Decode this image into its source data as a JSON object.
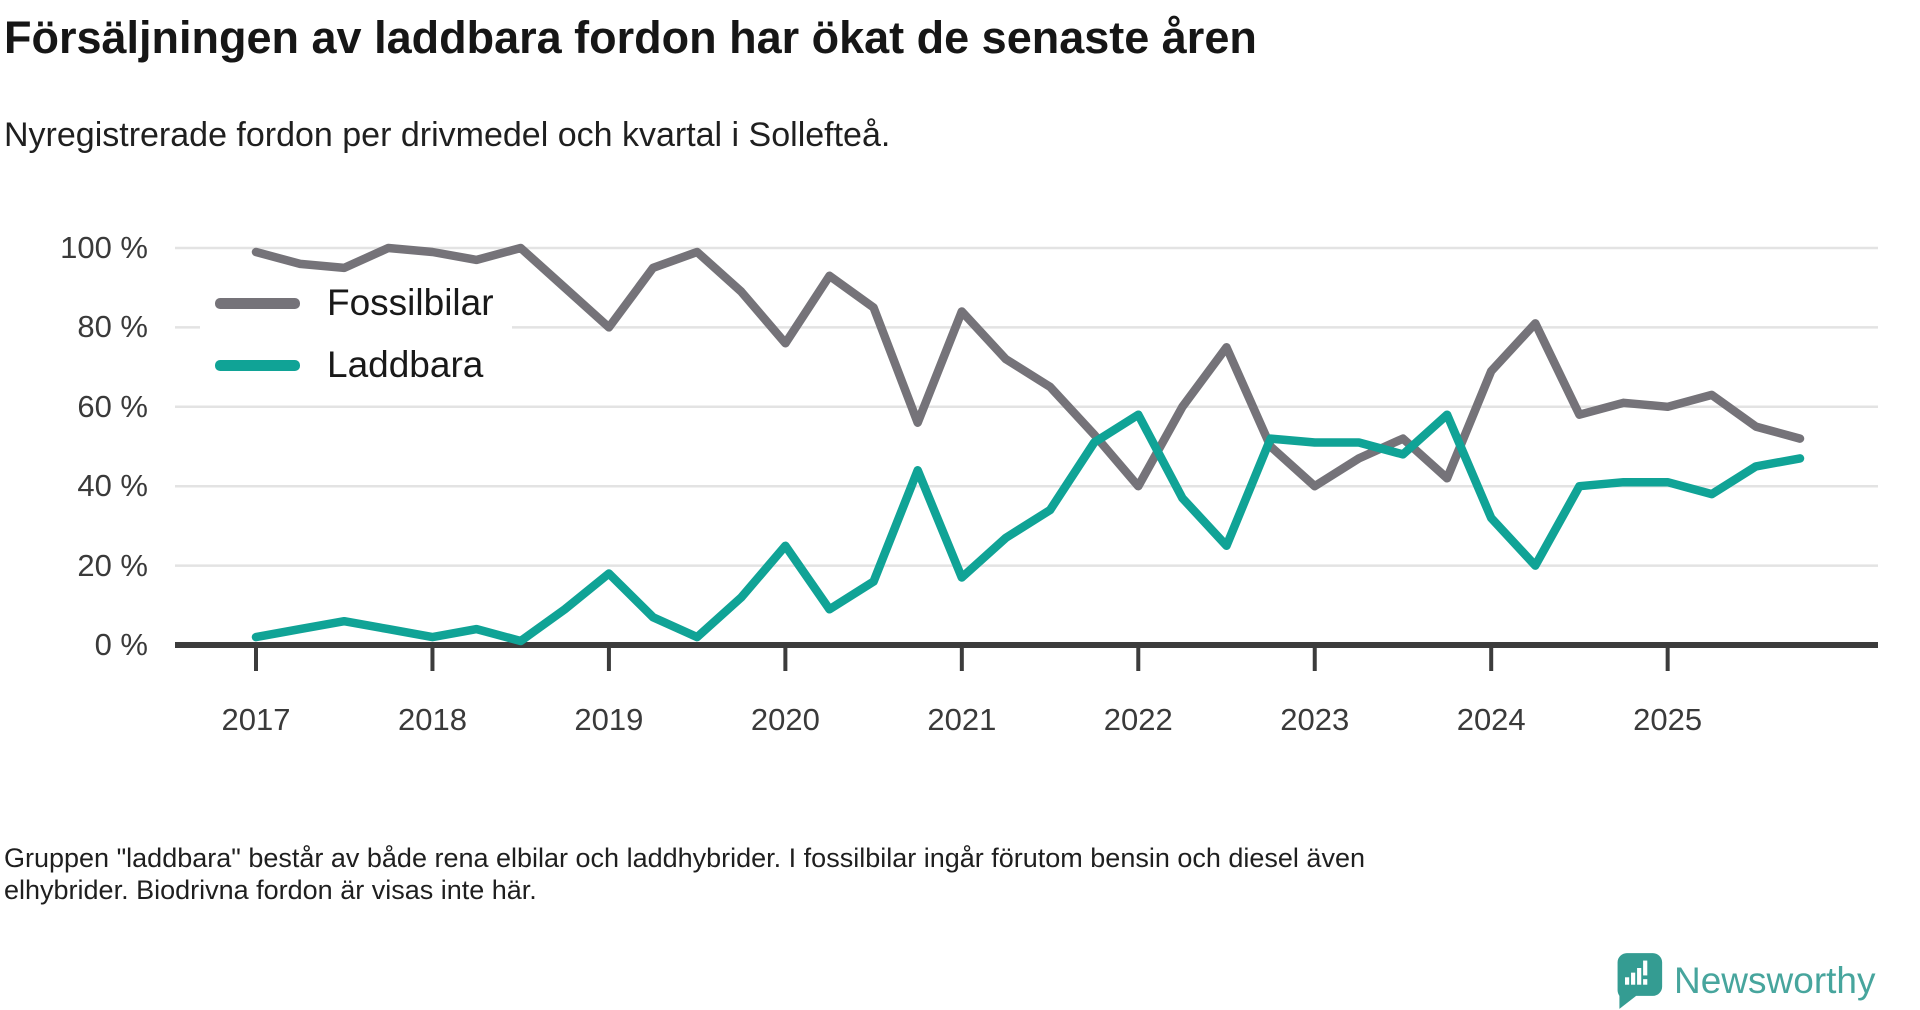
{
  "header": {
    "title": "Försäljningen av laddbara fordon har ökat de senaste åren",
    "subtitle": "Nyregistrerade fordon per drivmedel och kvartal i Sollefteå."
  },
  "chart_data": {
    "type": "line",
    "unit": "%",
    "title": "Försäljningen av laddbara fordon har ökat de senaste åren",
    "xlabel": "",
    "ylabel": "",
    "ylim": [
      0,
      100
    ],
    "grid": "horizontal",
    "legend_position": "top-left-inside",
    "x_tick_labels": [
      "2017",
      "2018",
      "2019",
      "2020",
      "2021",
      "2022",
      "2023",
      "2024",
      "2025"
    ],
    "y_tick_labels": [
      "0 %",
      "20 %",
      "40 %",
      "60 %",
      "80 %",
      "100 %"
    ],
    "y_tick_values": [
      0,
      20,
      40,
      60,
      80,
      100
    ],
    "x": [
      "2017 Q1",
      "2017 Q2",
      "2017 Q3",
      "2017 Q4",
      "2018 Q1",
      "2018 Q2",
      "2018 Q3",
      "2018 Q4",
      "2019 Q1",
      "2019 Q2",
      "2019 Q3",
      "2019 Q4",
      "2020 Q1",
      "2020 Q2",
      "2020 Q3",
      "2020 Q4",
      "2021 Q1",
      "2021 Q2",
      "2021 Q3",
      "2021 Q4",
      "2022 Q1",
      "2022 Q2",
      "2022 Q3",
      "2022 Q4",
      "2023 Q1",
      "2023 Q2",
      "2023 Q3",
      "2023 Q4",
      "2024 Q1",
      "2024 Q2",
      "2024 Q3",
      "2024 Q4",
      "2025 Q1",
      "2025 Q2",
      "2025 Q3",
      "2025 Q4"
    ],
    "series": [
      {
        "name": "Fossilbilar",
        "color": "#757379",
        "values": [
          99,
          96,
          95,
          100,
          99,
          97,
          100,
          90,
          80,
          95,
          99,
          89,
          76,
          93,
          85,
          56,
          84,
          72,
          65,
          53,
          40,
          60,
          75,
          50,
          40,
          47,
          52,
          42,
          69,
          81,
          58,
          61,
          60,
          63,
          55,
          52
        ]
      },
      {
        "name": "Laddbara",
        "color": "#10A396",
        "values": [
          2,
          4,
          6,
          4,
          2,
          4,
          1,
          9,
          18,
          7,
          2,
          12,
          25,
          9,
          16,
          44,
          17,
          27,
          34,
          51,
          58,
          37,
          25,
          52,
          51,
          51,
          48,
          58,
          32,
          20,
          40,
          41,
          41,
          38,
          45,
          47
        ]
      }
    ]
  },
  "footer": {
    "line1": "Gruppen \"laddbara\" består av både rena elbilar och laddhybrider. I fossilbilar ingår förutom bensin och diesel även",
    "line2": "elhybrider. Biodrivna fordon är visas inte här."
  },
  "brand": {
    "name": "Newsworthy",
    "logo_icon": "bar-chart-speech-bubble-icon",
    "color": "#47A59D",
    "mark_color": "#349C92"
  },
  "axis_colors": {
    "gridline": "#E3E3E3",
    "axis_line": "#3C3C3C",
    "tick": "#3C3C3C"
  }
}
